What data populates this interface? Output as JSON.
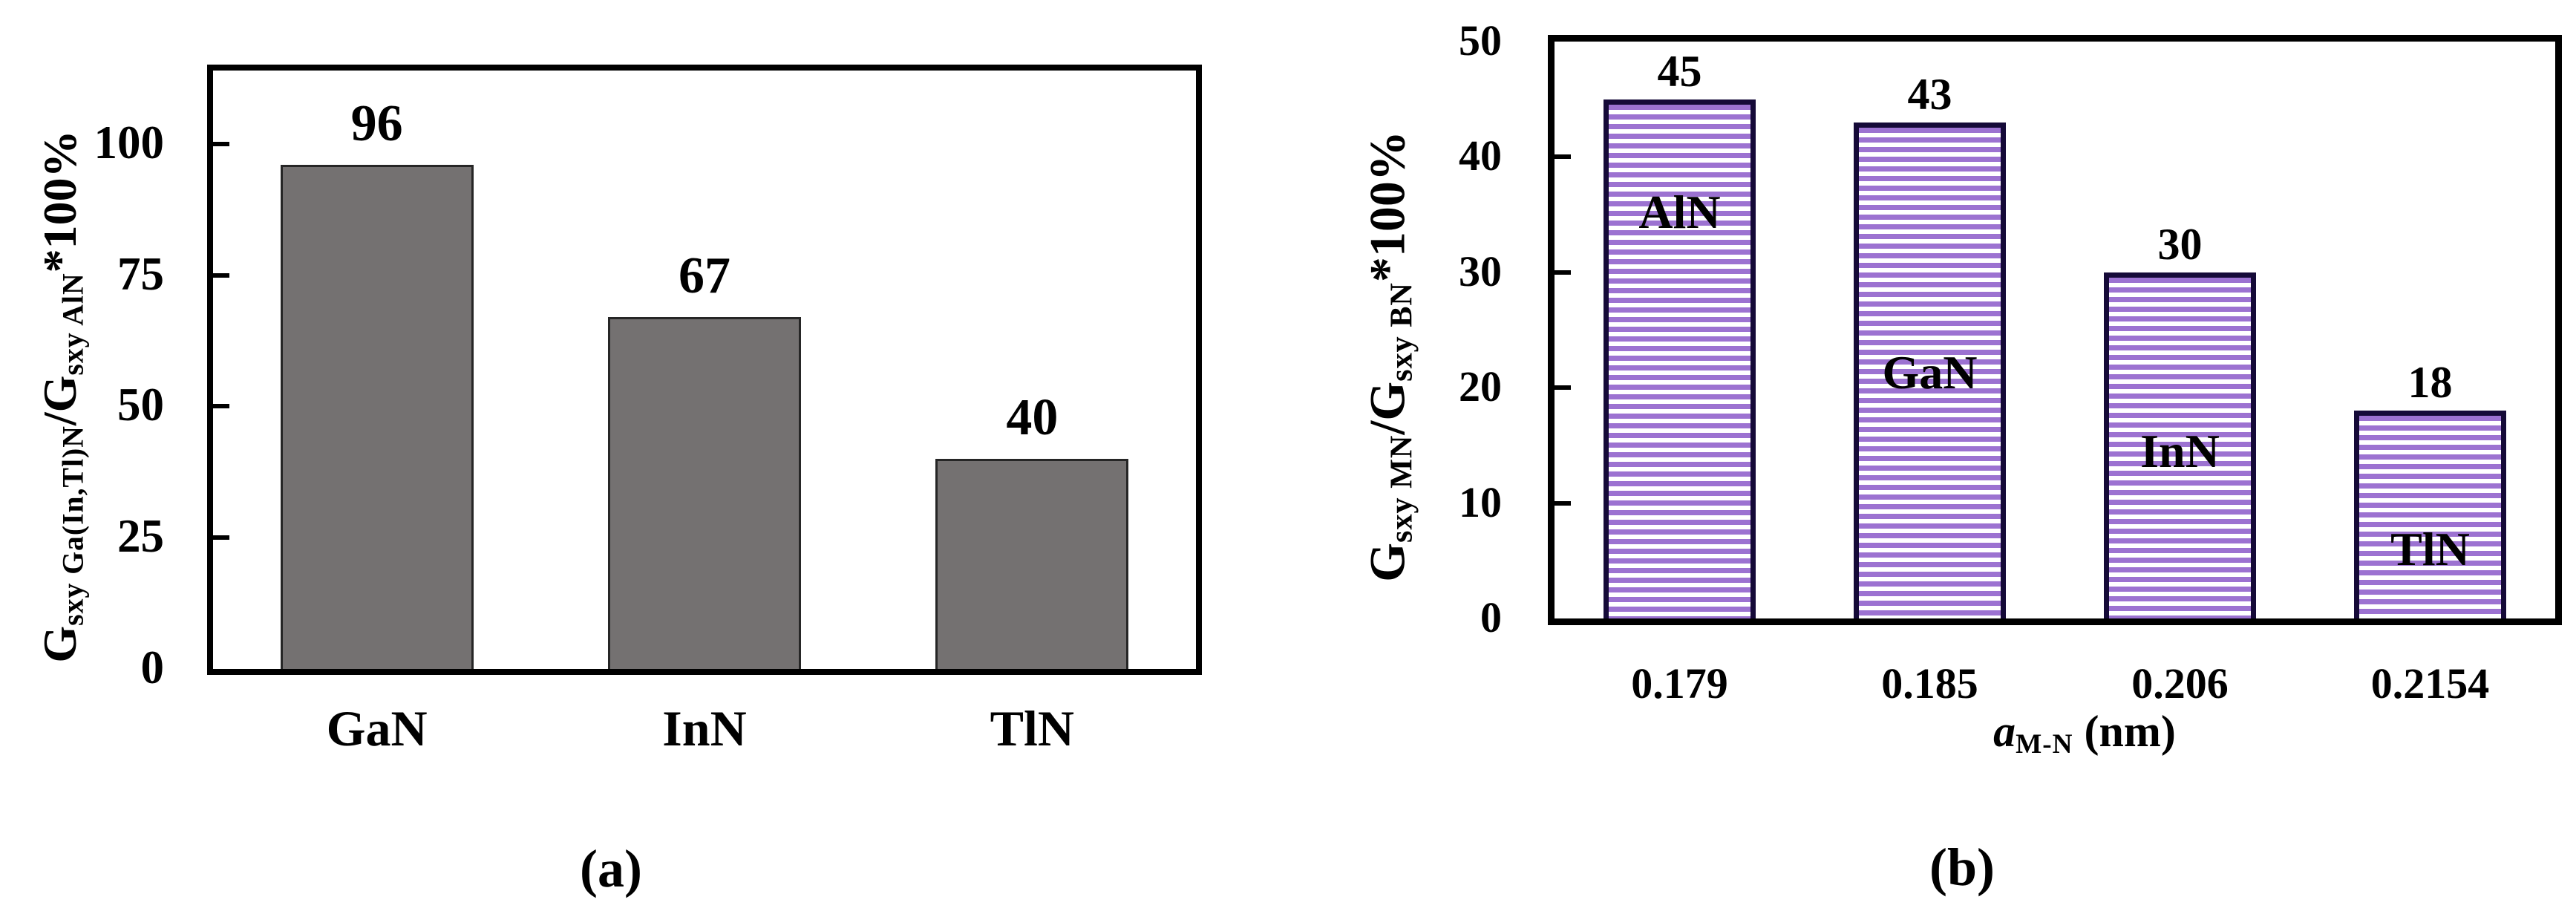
{
  "page": {
    "background": "#ffffff"
  },
  "chart_data": [
    {
      "id": "a",
      "type": "bar",
      "title": "",
      "categories": [
        "GaN",
        "InN",
        "TlN"
      ],
      "values": [
        96,
        67,
        40
      ],
      "value_labels": [
        "96",
        "67",
        "40"
      ],
      "yticks": [
        "0",
        "25",
        "50",
        "75",
        "100"
      ],
      "ytick_values": [
        0,
        25,
        50,
        75,
        100
      ],
      "ylim": [
        0,
        114
      ],
      "grid": false,
      "legend": null,
      "xlabel": "",
      "ylabel": "Gsxy Ga(In,Tl)N/Gsxy AlN*100%",
      "ylabel_parts": {
        "g1": "G",
        "s1": "sxy Ga(In,Tl)N",
        "g2": "/G",
        "s2": "sxy AlN",
        "tail": "*100%"
      },
      "bar_fill": "#747171",
      "bar_border": "#262626",
      "axis_color": "#000000",
      "caption": "(a)"
    },
    {
      "id": "b",
      "type": "bar",
      "title": "",
      "categories": [
        "0.179",
        "0.185",
        "0.206",
        "0.2154"
      ],
      "values": [
        45,
        43,
        30,
        18
      ],
      "value_labels": [
        "45",
        "43",
        "30",
        "18"
      ],
      "bar_names": [
        "AlN",
        "GaN",
        "InN",
        "TlN"
      ],
      "yticks": [
        "0",
        "10",
        "20",
        "30",
        "40",
        "50"
      ],
      "ytick_values": [
        0,
        10,
        20,
        30,
        40,
        50
      ],
      "ylim": [
        0,
        50
      ],
      "grid": false,
      "legend": null,
      "xlabel": "aM-N (nm)",
      "xlabel_parts": {
        "var": "a",
        "sub": "M-N",
        "tail": " (nm)"
      },
      "ylabel": "Gsxy MN/Gsxy BN*100%",
      "ylabel_parts": {
        "g1": "G",
        "s1": "sxy MN",
        "g2": "/G",
        "s2": "sxy BN",
        "tail": "*100%"
      },
      "bar_fill_stripe": "#9c72d1",
      "bar_fill_bg": "#ffffff",
      "bar_border": "#150a38",
      "axis_color": "#000000",
      "caption": "(b)"
    }
  ]
}
